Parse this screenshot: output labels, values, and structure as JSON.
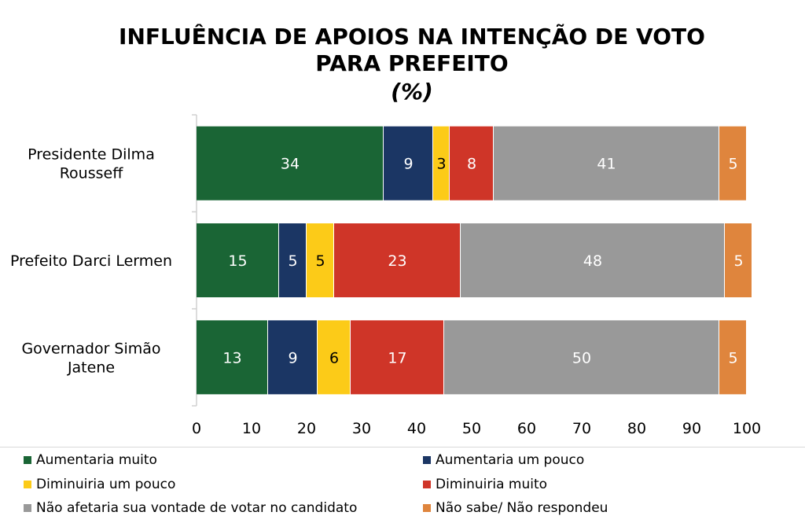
{
  "title_lines": [
    "INFLUÊNCIA DE APOIOS NA INTENÇÃO DE VOTO",
    "PARA PREFEITO",
    "(%)"
  ],
  "chart_data": {
    "type": "bar",
    "orientation": "horizontal",
    "stacked": true,
    "categories": [
      "Presidente Dilma Rousseff",
      "Prefeito Darci Lermen",
      "Governador Simão Jatene"
    ],
    "series": [
      {
        "name": "Aumentaria muito",
        "color": "#1a6535",
        "values": [
          34,
          15,
          13
        ]
      },
      {
        "name": "Aumentaria um pouco",
        "color": "#1b3664",
        "values": [
          9,
          5,
          9
        ]
      },
      {
        "name": "Diminuiria um pouco",
        "color": "#fccb18",
        "values": [
          3,
          5,
          6
        ]
      },
      {
        "name": "Diminuiria muito",
        "color": "#cf3528",
        "values": [
          8,
          23,
          17
        ]
      },
      {
        "name": "Não afetaria sua vontade de votar no candidato",
        "color": "#999999",
        "values": [
          41,
          48,
          50
        ]
      },
      {
        "name": "Não sabe/ Não respondeu",
        "color": "#df853d",
        "values": [
          5,
          5,
          5
        ]
      }
    ],
    "xlim": [
      0,
      100
    ],
    "xticks": [
      0,
      10,
      20,
      30,
      40,
      50,
      60,
      70,
      80,
      90,
      100
    ],
    "legend_position": "bottom"
  }
}
